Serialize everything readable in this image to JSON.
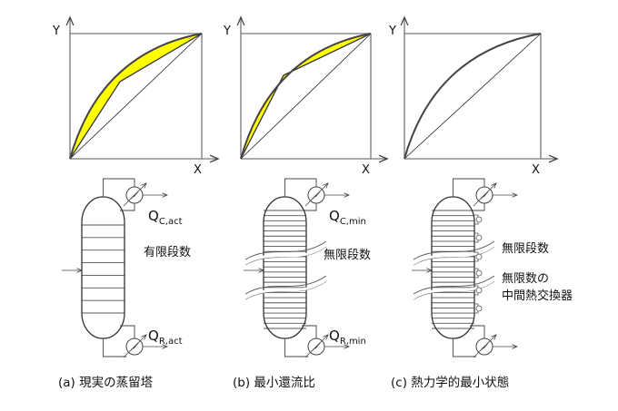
{
  "colors": {
    "fill": "#ffff00",
    "line": "#333333"
  },
  "axes": {
    "y_label": "Y",
    "x_label": "X"
  },
  "panels": [
    {
      "caption": "(a) 現実の蒸留塔",
      "q_top": "Q",
      "q_top_sub": "C,act",
      "q_bottom": "Q",
      "q_bottom_sub": "R,act",
      "note1": "有限段数"
    },
    {
      "caption": "(b) 最小還流比",
      "q_top": "Q",
      "q_top_sub": "C,min",
      "q_bottom": "Q",
      "q_bottom_sub": "R,min",
      "note1": "無限段数"
    },
    {
      "caption": "(c) 熱力学的最小状態",
      "note1": "無限段数",
      "note2": "無限数の",
      "note3": "中間熱交換器"
    }
  ]
}
